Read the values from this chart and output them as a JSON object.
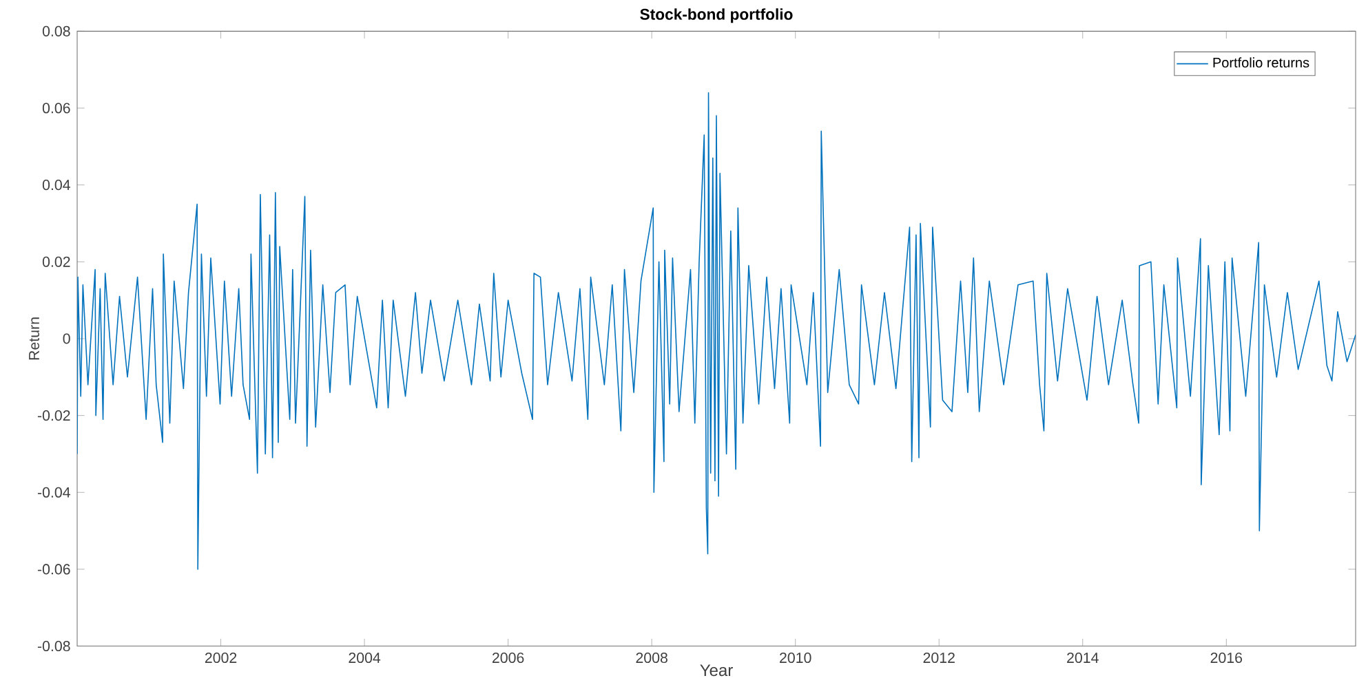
{
  "chart_data": {
    "type": "line",
    "title": "Stock-bond portfolio",
    "xlabel": "Year",
    "ylabel": "Return",
    "xlim": [
      2000,
      2017.8
    ],
    "ylim": [
      -0.08,
      0.08
    ],
    "xticks": [
      2002,
      2004,
      2006,
      2008,
      2010,
      2012,
      2014,
      2016
    ],
    "yticks": [
      -0.08,
      -0.06,
      -0.04,
      -0.02,
      0,
      0.02,
      0.04,
      0.06,
      0.08
    ],
    "legend": "top right",
    "series": [
      {
        "name": "Portfolio returns",
        "color": "#0072bd",
        "x": [
          2000.0,
          2000.01,
          2000.05,
          2000.08,
          2000.15,
          2000.25,
          2000.26,
          2000.32,
          2000.36,
          2000.39,
          2000.5,
          2000.59,
          2000.7,
          2000.84,
          2000.96,
          2001.05,
          2001.1,
          2001.19,
          2001.2,
          2001.29,
          2001.35,
          2001.48,
          2001.55,
          2001.67,
          2001.68,
          2001.73,
          2001.8,
          2001.86,
          2001.99,
          2002.05,
          2002.15,
          2002.25,
          2002.31,
          2002.4,
          2002.42,
          2002.51,
          2002.55,
          2002.62,
          2002.68,
          2002.72,
          2002.76,
          2002.8,
          2002.82,
          2002.96,
          2003.0,
          2003.04,
          2003.17,
          2003.2,
          2003.25,
          2003.32,
          2003.42,
          2003.52,
          2003.6,
          2003.73,
          2003.8,
          2003.9,
          2004.17,
          2004.25,
          2004.33,
          2004.4,
          2004.57,
          2004.71,
          2004.8,
          2004.92,
          2005.11,
          2005.3,
          2005.49,
          2005.6,
          2005.75,
          2005.8,
          2005.9,
          2006.0,
          2006.19,
          2006.34,
          2006.36,
          2006.45,
          2006.55,
          2006.7,
          2006.89,
          2007.0,
          2007.11,
          2007.15,
          2007.34,
          2007.45,
          2007.57,
          2007.62,
          2007.75,
          2007.85,
          2008.02,
          2008.03,
          2008.1,
          2008.17,
          2008.18,
          2008.25,
          2008.29,
          2008.38,
          2008.54,
          2008.6,
          2008.66,
          2008.73,
          2008.76,
          2008.78,
          2008.79,
          2008.82,
          2008.85,
          2008.88,
          2008.9,
          2008.93,
          2008.95,
          2009.04,
          2009.1,
          2009.17,
          2009.2,
          2009.27,
          2009.35,
          2009.49,
          2009.6,
          2009.71,
          2009.8,
          2009.92,
          2009.94,
          2010.16,
          2010.25,
          2010.35,
          2010.36,
          2010.45,
          2010.61,
          2010.75,
          2010.88,
          2010.92,
          2011.1,
          2011.24,
          2011.4,
          2011.59,
          2011.62,
          2011.68,
          2011.72,
          2011.74,
          2011.88,
          2011.91,
          2012.05,
          2012.18,
          2012.3,
          2012.4,
          2012.48,
          2012.56,
          2012.7,
          2012.9,
          2013.1,
          2013.31,
          2013.4,
          2013.46,
          2013.5,
          2013.65,
          2013.79,
          2014.06,
          2014.2,
          2014.36,
          2014.55,
          2014.7,
          2014.78,
          2014.79,
          2014.95,
          2015.05,
          2015.13,
          2015.31,
          2015.32,
          2015.5,
          2015.64,
          2015.65,
          2015.75,
          2015.9,
          2015.98,
          2016.05,
          2016.08,
          2016.27,
          2016.45,
          2016.46,
          2016.53,
          2016.7,
          2016.85,
          2017.0,
          2017.29,
          2017.4,
          2017.47,
          2017.55,
          2017.68,
          2017.8
        ],
        "values": [
          -0.03,
          0.016,
          -0.015,
          0.014,
          -0.012,
          0.018,
          -0.02,
          0.013,
          -0.021,
          0.017,
          -0.012,
          0.011,
          -0.01,
          0.016,
          -0.021,
          0.013,
          -0.012,
          -0.027,
          0.022,
          -0.022,
          0.015,
          -0.013,
          0.012,
          0.035,
          -0.06,
          0.022,
          -0.015,
          0.021,
          -0.017,
          0.015,
          -0.015,
          0.013,
          -0.012,
          -0.021,
          0.022,
          -0.035,
          0.0375,
          -0.03,
          0.027,
          -0.031,
          0.038,
          -0.027,
          0.024,
          -0.021,
          0.018,
          -0.022,
          0.037,
          -0.028,
          0.023,
          -0.023,
          0.014,
          -0.014,
          0.012,
          0.014,
          -0.012,
          0.011,
          -0.018,
          0.01,
          -0.018,
          0.01,
          -0.015,
          0.012,
          -0.009,
          0.01,
          -0.011,
          0.01,
          -0.012,
          0.009,
          -0.011,
          0.017,
          -0.01,
          0.01,
          -0.009,
          -0.021,
          0.017,
          0.016,
          -0.012,
          0.012,
          -0.011,
          0.013,
          -0.021,
          0.016,
          -0.012,
          0.014,
          -0.024,
          0.018,
          -0.014,
          0.015,
          0.034,
          -0.04,
          0.02,
          -0.032,
          0.023,
          -0.017,
          0.021,
          -0.019,
          0.018,
          -0.022,
          0.02,
          0.053,
          -0.044,
          -0.056,
          0.064,
          -0.035,
          0.047,
          -0.037,
          0.058,
          -0.041,
          0.043,
          -0.03,
          0.028,
          -0.034,
          0.034,
          -0.022,
          0.019,
          -0.017,
          0.016,
          -0.013,
          0.013,
          -0.022,
          0.014,
          -0.012,
          0.012,
          -0.028,
          0.054,
          -0.014,
          0.018,
          -0.012,
          -0.017,
          0.014,
          -0.012,
          0.012,
          -0.013,
          0.029,
          -0.032,
          0.027,
          -0.031,
          0.03,
          -0.023,
          0.029,
          -0.016,
          -0.019,
          0.015,
          -0.014,
          0.021,
          -0.019,
          0.015,
          -0.012,
          0.014,
          0.015,
          -0.012,
          -0.024,
          0.017,
          -0.011,
          0.013,
          -0.016,
          0.011,
          -0.012,
          0.01,
          -0.012,
          -0.022,
          0.019,
          0.02,
          -0.017,
          0.014,
          -0.018,
          0.021,
          -0.015,
          0.026,
          -0.038,
          0.019,
          -0.025,
          0.02,
          -0.024,
          0.021,
          -0.015,
          0.025,
          -0.05,
          0.014,
          -0.01,
          0.012,
          -0.008,
          0.015,
          -0.007,
          -0.011,
          0.007,
          -0.006,
          0.001
        ]
      }
    ]
  }
}
